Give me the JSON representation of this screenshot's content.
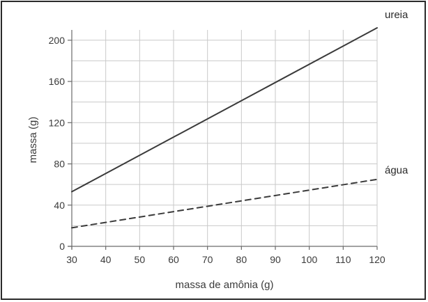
{
  "chart_data": {
    "type": "line",
    "title": "",
    "xlabel": "massa de amônia (g)",
    "ylabel": "massa (g)",
    "xlim": [
      30,
      120
    ],
    "ylim": [
      0,
      210
    ],
    "x_ticks": [
      30,
      40,
      50,
      60,
      70,
      80,
      90,
      100,
      110,
      120
    ],
    "y_ticks": [
      0,
      40,
      80,
      120,
      160,
      200
    ],
    "x_gridlines": [
      30,
      40,
      50,
      60,
      70,
      80,
      90,
      100,
      110,
      120
    ],
    "y_gridlines": [
      0,
      20,
      40,
      60,
      80,
      100,
      120,
      140,
      160,
      180,
      200
    ],
    "grid": true,
    "legend": "none",
    "series": [
      {
        "name": "ureia",
        "style": "solid",
        "color": "#3a3a3a",
        "x": [
          30,
          120
        ],
        "y": [
          53,
          212
        ]
      },
      {
        "name": "água",
        "style": "dashed",
        "color": "#3a3a3a",
        "x": [
          30,
          120
        ],
        "y": [
          18,
          65
        ]
      }
    ]
  }
}
